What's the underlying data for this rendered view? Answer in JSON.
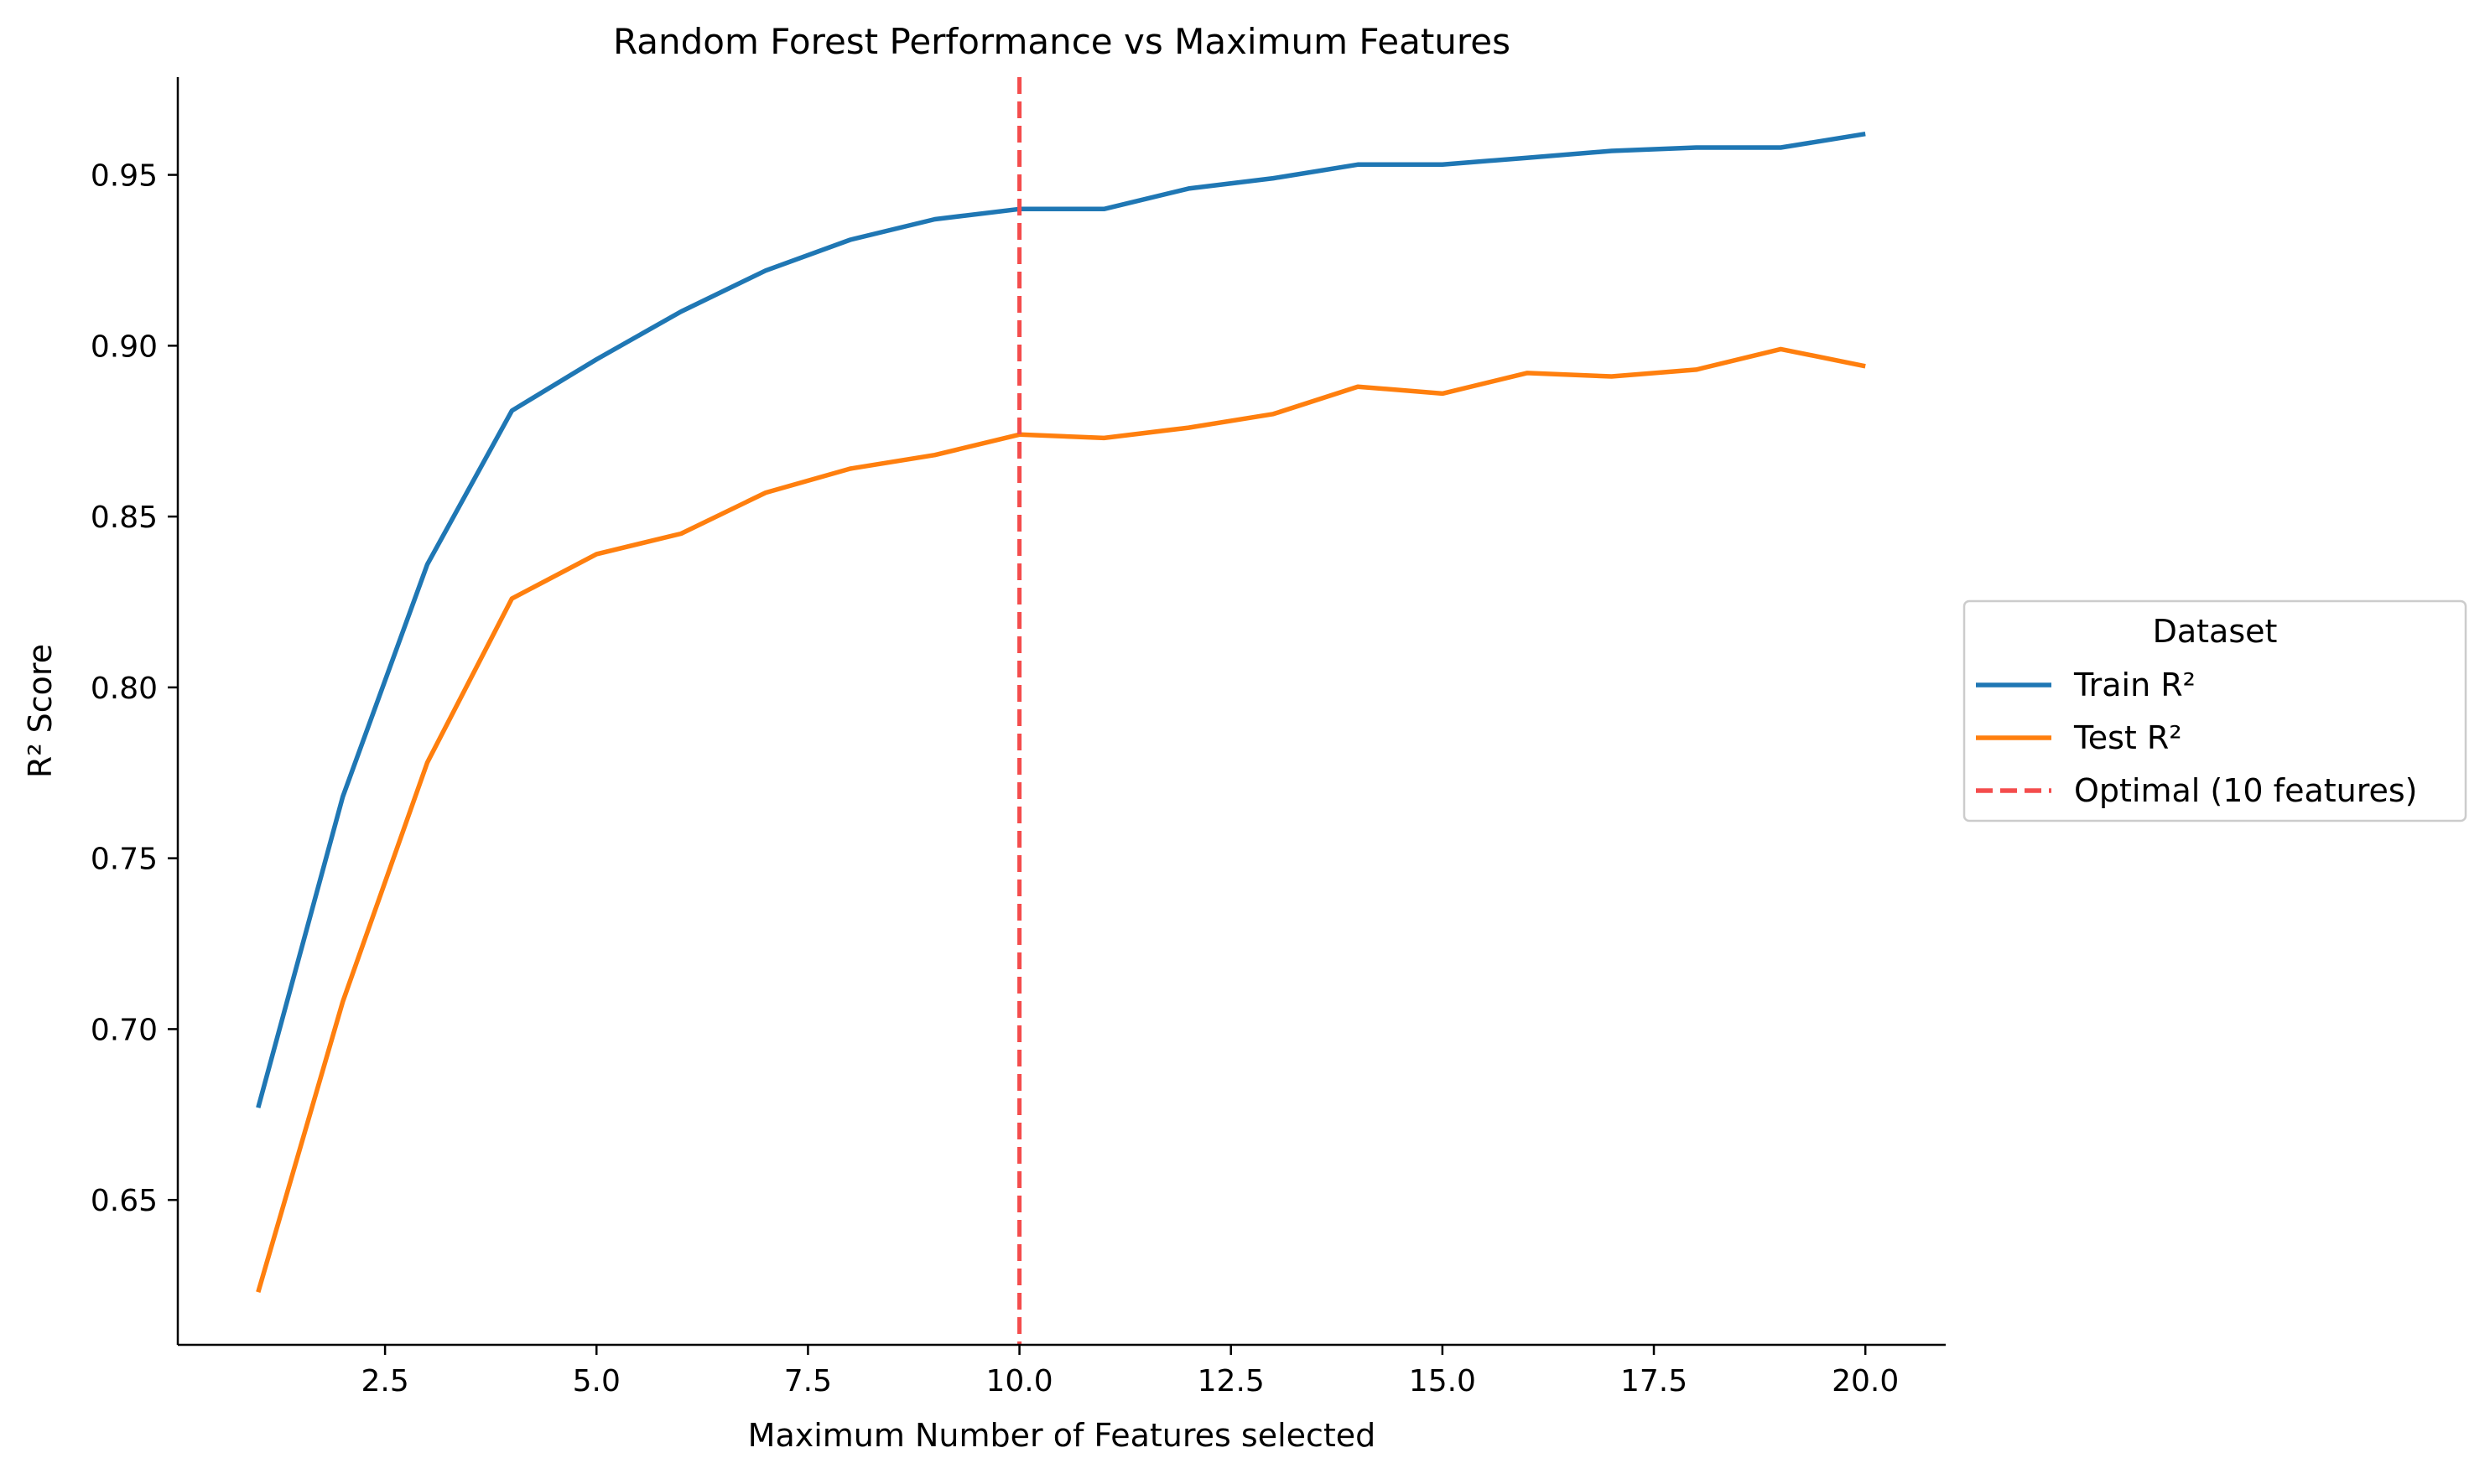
{
  "chart_data": {
    "type": "line",
    "title": "Random Forest Performance vs Maximum Features",
    "xlabel": "Maximum Number of Features selected",
    "ylabel": "R² Score",
    "xlim": [
      0.05,
      20.95
    ],
    "ylim": [
      0.6076,
      0.9786
    ],
    "xticks": [
      2.5,
      5.0,
      7.5,
      10.0,
      12.5,
      15.0,
      17.5,
      20.0
    ],
    "xtick_labels": [
      "2.5",
      "5.0",
      "7.5",
      "10.0",
      "12.5",
      "15.0",
      "17.5",
      "20.0"
    ],
    "yticks": [
      0.65,
      0.7,
      0.75,
      0.8,
      0.85,
      0.9,
      0.95
    ],
    "ytick_labels": [
      "0.65",
      "0.70",
      "0.75",
      "0.80",
      "0.85",
      "0.90",
      "0.95"
    ],
    "grid": false,
    "x": [
      1,
      2,
      3,
      4,
      5,
      6,
      7,
      8,
      9,
      10,
      11,
      12,
      13,
      14,
      15,
      16,
      17,
      18,
      19,
      20
    ],
    "series": [
      {
        "name": "Train R²",
        "color": "#1f77b4",
        "values": [
          0.677,
          0.768,
          0.836,
          0.881,
          0.896,
          0.91,
          0.922,
          0.931,
          0.937,
          0.94,
          0.94,
          0.946,
          0.949,
          0.953,
          0.953,
          0.955,
          0.957,
          0.958,
          0.958,
          0.962
        ]
      },
      {
        "name": "Test R²",
        "color": "#ff7f0e",
        "values": [
          0.623,
          0.708,
          0.778,
          0.826,
          0.839,
          0.845,
          0.857,
          0.864,
          0.868,
          0.874,
          0.873,
          0.876,
          0.88,
          0.888,
          0.886,
          0.892,
          0.891,
          0.893,
          0.899,
          0.894
        ]
      }
    ],
    "reference_lines": [
      {
        "name": "Optimal (10 features)",
        "orientation": "vertical",
        "x": 10,
        "color": "#f44c4c",
        "style": "dashed"
      }
    ],
    "legend": {
      "title": "Dataset",
      "placement": "outside-right"
    }
  }
}
